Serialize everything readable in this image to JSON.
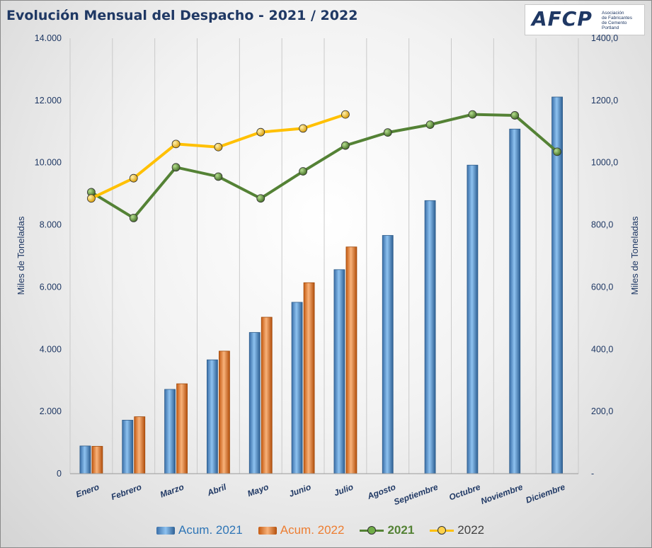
{
  "title": "Evolución Mensual del Despacho - 2021 / 2022",
  "logo": {
    "mark": "AFCP",
    "subtitle": [
      "Asociación",
      "de Fabricantes",
      "de Cemento",
      "Portland"
    ]
  },
  "colors": {
    "acum2021": "#5b9bd5",
    "acum2022": "#ed7d31",
    "s2021": "#548235",
    "s2022": "#ffc000",
    "text": "#1f3864"
  },
  "chart_data": {
    "type": "bar",
    "categories": [
      "Enero",
      "Febrero",
      "Marzo",
      "Abril",
      "Mayo",
      "Junio",
      "Julio",
      "Agosto",
      "Septiembre",
      "Octubre",
      "Noviembre",
      "Diciembre"
    ],
    "series": [
      {
        "name": "Acum. 2021",
        "type": "bar",
        "axis": "left",
        "values": [
          890,
          1720,
          2710,
          3660,
          4540,
          5510,
          6560,
          7660,
          8780,
          9920,
          11080,
          12110
        ]
      },
      {
        "name": "Acum. 2022",
        "type": "bar",
        "axis": "left",
        "values": [
          880,
          1830,
          2890,
          3940,
          5030,
          6140,
          7290,
          null,
          null,
          null,
          null,
          null
        ]
      },
      {
        "name": "2021",
        "type": "line",
        "axis": "right",
        "values": [
          905,
          822,
          985,
          955,
          885,
          972,
          1055,
          1097,
          1122,
          1155,
          1152,
          1035
        ]
      },
      {
        "name": "2022",
        "type": "line",
        "axis": "right",
        "values": [
          885,
          950,
          1060,
          1050,
          1098,
          1110,
          1155,
          null,
          null,
          null,
          null,
          null
        ]
      }
    ],
    "y_left": {
      "label": "Miles de Toneladas",
      "min": 0,
      "max": 14000,
      "ticks": [
        "0",
        "2.000",
        "4.000",
        "6.000",
        "8.000",
        "10.000",
        "12.000",
        "14.000"
      ]
    },
    "y_right": {
      "label": "Miles de Toneladas",
      "min": 0,
      "max": 1400,
      "ticks": [
        "-",
        "200,0",
        "400,0",
        "600,0",
        "800,0",
        "1000,0",
        "1200,0",
        "1400,0"
      ]
    },
    "grid": "vertical",
    "legend": "bottom"
  }
}
